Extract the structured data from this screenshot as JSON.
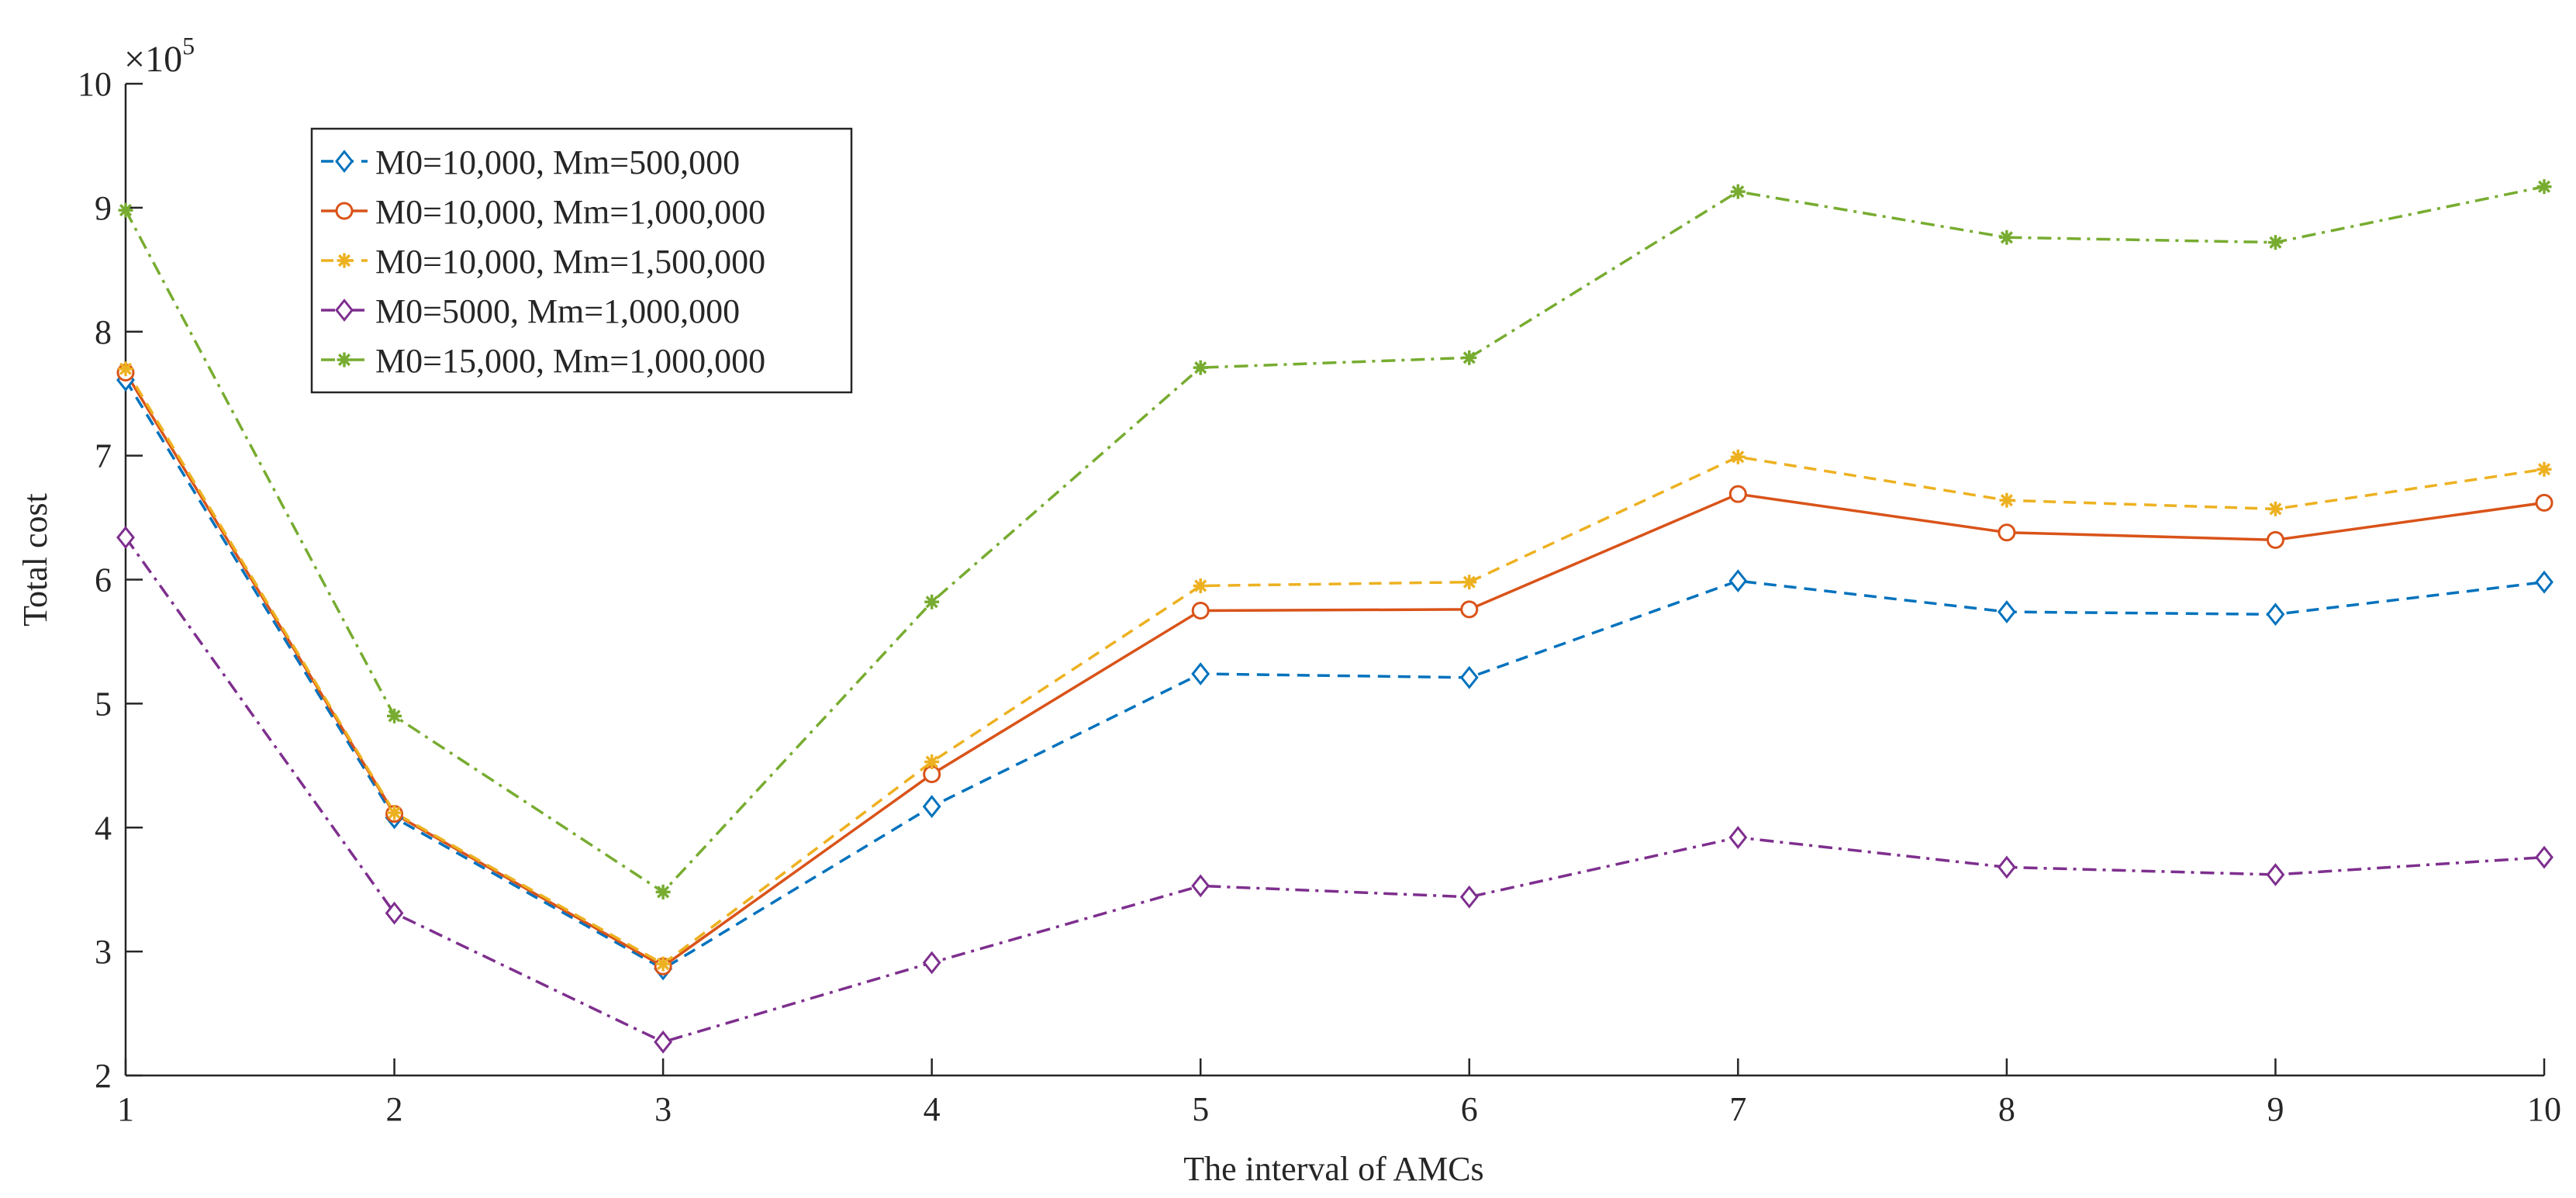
{
  "chart_data": {
    "type": "line",
    "title": "",
    "xlabel": "The interval of AMCs",
    "ylabel": "Total cost",
    "x": [
      1,
      2,
      3,
      4,
      5,
      6,
      7,
      8,
      9,
      10
    ],
    "xticks": [
      "1",
      "2",
      "3",
      "4",
      "5",
      "6",
      "7",
      "8",
      "9",
      "10"
    ],
    "yticks": [
      "2",
      "3",
      "4",
      "5",
      "6",
      "7",
      "8",
      "9",
      "10"
    ],
    "ylim": [
      200000,
      1000000
    ],
    "xlim": [
      1,
      10
    ],
    "y_exponent": {
      "base": "×10",
      "power": "5"
    },
    "grid": false,
    "legend_location": "top-left",
    "series": [
      {
        "name": "M0=10,000, Mm=500,000",
        "color": "#0072BD",
        "marker": "diamond",
        "dash": "dashed",
        "values": [
          761000,
          408000,
          286000,
          417000,
          524000,
          521000,
          599000,
          574000,
          572000,
          598000
        ]
      },
      {
        "name": "M0=10,000, Mm=1,000,000",
        "color": "#D95319",
        "marker": "circle",
        "dash": "solid",
        "values": [
          767000,
          411000,
          288000,
          443000,
          575000,
          576000,
          669000,
          638000,
          632000,
          662000
        ]
      },
      {
        "name": "M0=10,000, Mm=1,500,000",
        "color": "#EDB120",
        "marker": "asterisk",
        "dash": "dashed",
        "values": [
          770000,
          412000,
          290000,
          453000,
          595000,
          598000,
          699000,
          664000,
          657000,
          689000
        ]
      },
      {
        "name": "M0=5000, Mm=1,000,000",
        "color": "#7E2F8E",
        "marker": "diamond",
        "dash": "dashdot",
        "values": [
          634000,
          331000,
          227000,
          291000,
          353000,
          344000,
          392000,
          368000,
          362000,
          376000
        ]
      },
      {
        "name": "M0=15,000, Mm=1,000,000",
        "color": "#77AC30",
        "marker": "asterisk",
        "dash": "dashdot",
        "values": [
          898000,
          490000,
          348000,
          582000,
          771000,
          779000,
          913000,
          876000,
          872000,
          917000
        ]
      }
    ]
  }
}
